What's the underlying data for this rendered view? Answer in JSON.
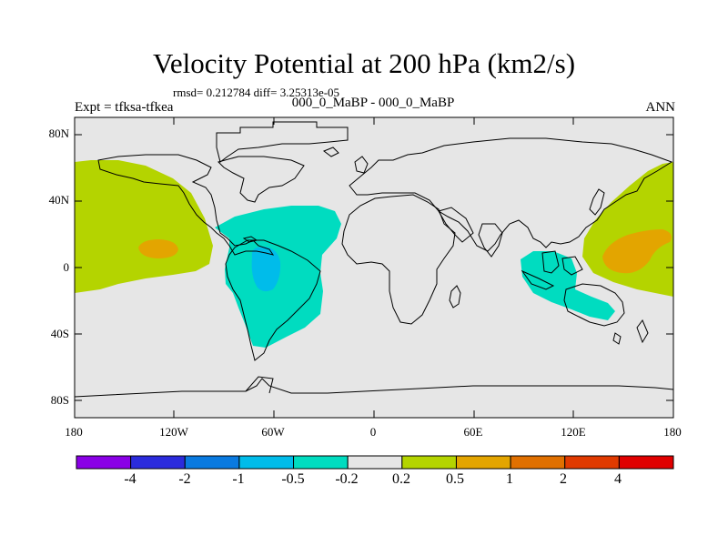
{
  "title": "Velocity Potential at 200 hPa (km2/s)",
  "stats": "rmsd= 0.212784 diff= 3.25313e-05",
  "experiment": "Expt = tfksa-tfkea",
  "diff_label": "000_0_MaBP - 000_0_MaBP",
  "season": "ANN",
  "colors": {
    "ocean_bg": "#e6e6e6",
    "coast": "#000000",
    "level_neg_02_02": "#e6e6e6",
    "level_02_05": "#b4d400",
    "level_05_1": "#e3a500",
    "level_neg_05_neg_02": "#00dcc0",
    "level_neg_1_neg_05": "#00bcea"
  },
  "y_axis": {
    "ticks": [
      {
        "label": "80N",
        "lat": 80
      },
      {
        "label": "40N",
        "lat": 40
      },
      {
        "label": "0",
        "lat": 0
      },
      {
        "label": "40S",
        "lat": -40
      },
      {
        "label": "80S",
        "lat": -80
      }
    ]
  },
  "x_axis": {
    "ticks": [
      {
        "label": "180",
        "lon": -180
      },
      {
        "label": "120W",
        "lon": -120
      },
      {
        "label": "60W",
        "lon": -60
      },
      {
        "label": "0",
        "lon": 0
      },
      {
        "label": "60E",
        "lon": 60
      },
      {
        "label": "120E",
        "lon": 120
      },
      {
        "label": "180",
        "lon": 180
      }
    ]
  },
  "colorbar": {
    "colors": [
      "#8a00e6",
      "#2b2bdc",
      "#0a7ae0",
      "#00bcea",
      "#00dcc0",
      "#e6e6e6",
      "#b4d400",
      "#e3a500",
      "#e07000",
      "#e03a00",
      "#e00000"
    ],
    "labels": [
      "-4",
      "-2",
      "-1",
      "-0.5",
      "-0.2",
      "0.2",
      "0.5",
      "1",
      "2",
      "4"
    ]
  }
}
